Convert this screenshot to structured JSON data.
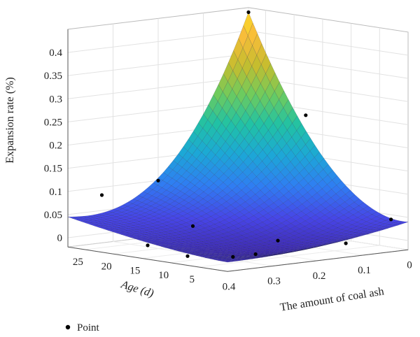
{
  "chart_data": {
    "type": "surface3d",
    "zlabel": "Expansion rate (%)",
    "xlabel": "The amount of coal ash",
    "ylabel_main": "Age ",
    "ylabel_unit": "(d)",
    "z_ticks": [
      "0",
      "0.05",
      "0.1",
      "0.15",
      "0.2",
      "0.25",
      "0.3",
      "0.35",
      "0.4"
    ],
    "z_values": [
      0,
      0.05,
      0.1,
      0.15,
      0.2,
      0.25,
      0.3,
      0.35,
      0.4
    ],
    "age_ticks": [
      "25",
      "20",
      "15",
      "10",
      "5"
    ],
    "age_values": [
      25,
      20,
      15,
      10,
      5
    ],
    "ash_ticks": [
      "0.4",
      "0.3",
      "0.2",
      "0.1",
      "0"
    ],
    "ash_values": [
      0.4,
      0.3,
      0.2,
      0.1,
      0
    ],
    "xlim": [
      0,
      0.4
    ],
    "ylim": [
      0,
      28
    ],
    "zlim": [
      -0.02,
      0.45
    ],
    "grid": true,
    "legend": {
      "label": "Point",
      "placement": "bottom-left"
    },
    "colormap": [
      "#3e26a8",
      "#4745e7",
      "#2f7ef2",
      "#1ca8d6",
      "#21c2a4",
      "#6fcb5d",
      "#c6bd2e",
      "#f9bd3a",
      "#f9e51f"
    ],
    "points": [
      {
        "ash": 0.0,
        "age": 28,
        "z": 0.44
      },
      {
        "ash": 0.05,
        "age": 14,
        "z": 0.25
      },
      {
        "ash": 0.0,
        "age": 3,
        "z": 0.04
      },
      {
        "ash": 0.2,
        "age": 28,
        "z": 0.1
      },
      {
        "ash": 0.35,
        "age": 26,
        "z": 0.09
      },
      {
        "ash": 0.3,
        "age": 14,
        "z": 0.04
      },
      {
        "ash": 0.2,
        "age": 7,
        "z": 0.01
      },
      {
        "ash": 0.4,
        "age": 14,
        "z": 0.01
      },
      {
        "ash": 0.4,
        "age": 7,
        "z": 0.0
      },
      {
        "ash": 0.35,
        "age": 3,
        "z": 0.0
      },
      {
        "ash": 0.3,
        "age": 3,
        "z": 0.0
      },
      {
        "ash": 0.1,
        "age": 3,
        "z": 0.0
      }
    ]
  }
}
